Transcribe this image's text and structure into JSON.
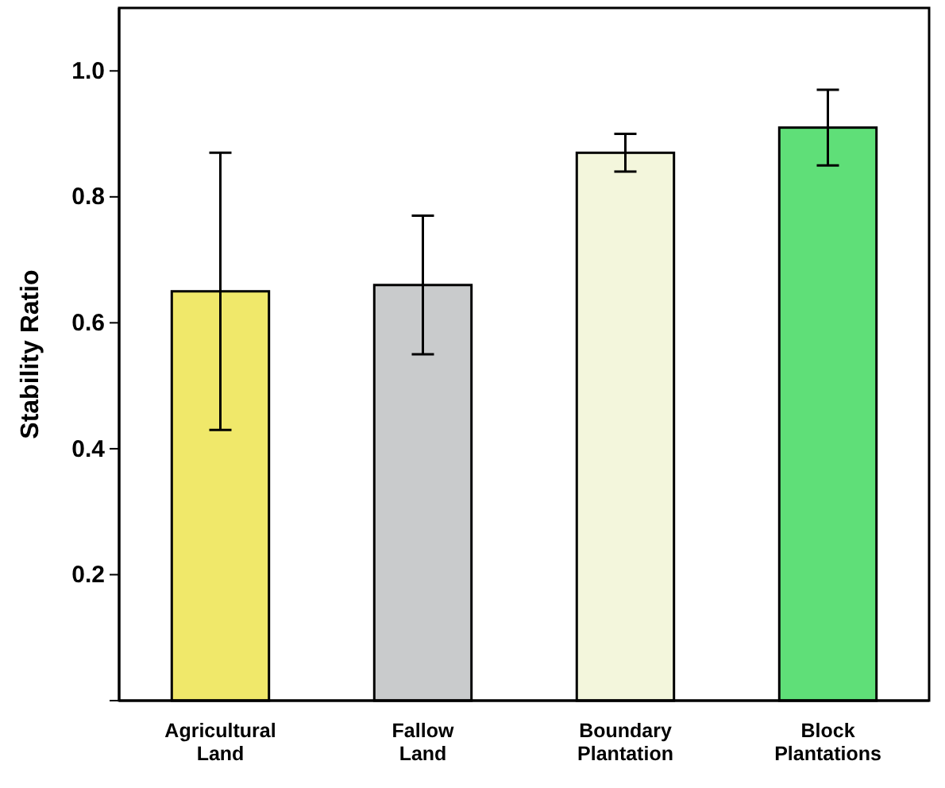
{
  "chart_data": {
    "type": "bar",
    "ylabel": "Stability Ratio",
    "categories": [
      "Agricultural\nLand",
      "Fallow\nLand",
      "Boundary\nPlantation",
      "Block\nPlantations"
    ],
    "values": [
      0.65,
      0.66,
      0.87,
      0.91
    ],
    "errors": [
      [
        0.43,
        0.87
      ],
      [
        0.55,
        0.77
      ],
      [
        0.84,
        0.9
      ],
      [
        0.85,
        0.97
      ]
    ],
    "colors": [
      "#f0e86a",
      "#c9cbcc",
      "#f3f6dc",
      "#5fdf78"
    ],
    "ylim": [
      0,
      1.1
    ],
    "yticks": [
      {
        "value": 0,
        "label": null
      },
      0.2,
      0.4,
      0.6,
      0.8,
      {
        "value": 1.0,
        "label": "1.0"
      }
    ],
    "grid": false
  }
}
